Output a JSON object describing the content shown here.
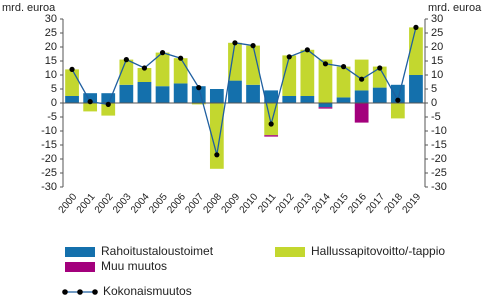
{
  "chart_data": {
    "type": "bar",
    "stacked": true,
    "y_label": "mrd. euroa",
    "y2_label": "mrd. euroa",
    "categories": [
      "2000",
      "2001",
      "2002",
      "2003",
      "2004",
      "2005",
      "2006",
      "2007",
      "2008",
      "2009",
      "2010",
      "2011",
      "2012",
      "2013",
      "2014",
      "2015",
      "2016",
      "2017",
      "2018",
      "2019"
    ],
    "series": [
      {
        "name": "Rahoitustaloustoimet",
        "color": "#1470ac",
        "values": [
          2.5,
          3.5,
          3.5,
          6.5,
          7.5,
          6,
          7,
          6,
          5,
          8,
          6.5,
          4.5,
          2.5,
          2.5,
          -1.5,
          2,
          4.5,
          5.5,
          6.5,
          10
        ]
      },
      {
        "name": "Hallussapitovoitto/-tappio",
        "color": "#c3d72f",
        "values": [
          9.5,
          -3,
          -4.5,
          9,
          5,
          12,
          9,
          -0.5,
          -23.5,
          13.5,
          14,
          -11.5,
          14.5,
          16.5,
          15.5,
          11,
          11,
          7.5,
          -5.5,
          17
        ]
      },
      {
        "name": "Muu muutos",
        "color": "#a3007c",
        "values": [
          0,
          0,
          0,
          0,
          0,
          0,
          0,
          0,
          0,
          0,
          0,
          -0.5,
          0,
          0,
          -0.5,
          0,
          -7,
          0,
          0,
          0
        ]
      },
      {
        "name": "Kokonaismuutos",
        "type": "line",
        "color": "#1f5fa0",
        "marker_color": "#000000",
        "values": [
          12,
          0.5,
          -0.5,
          15.5,
          12.5,
          18,
          16,
          5.5,
          -18.5,
          21.5,
          20.5,
          -7.5,
          16.5,
          19,
          14,
          13,
          8.5,
          12.5,
          1,
          27
        ]
      }
    ],
    "ylim": [
      -30,
      30
    ],
    "yticks": [
      -30,
      -25,
      -20,
      -15,
      -10,
      -5,
      0,
      5,
      10,
      15,
      20,
      25,
      30
    ],
    "y2lim": [
      -30,
      30
    ],
    "y2ticks": [
      -30,
      -25,
      -20,
      -15,
      -10,
      -5,
      0,
      5,
      10,
      15,
      20,
      25,
      30
    ]
  }
}
